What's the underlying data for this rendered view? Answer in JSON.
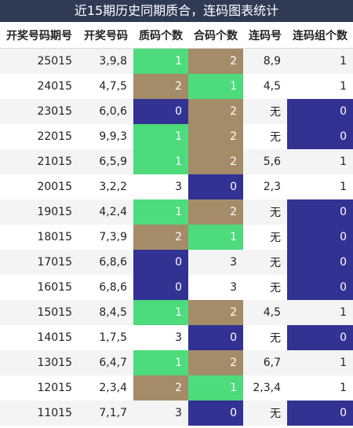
{
  "title": "近15期历史同期质合，连码图表统计",
  "headers": [
    "开奖号码期号",
    "开奖号码",
    "质码个数",
    "合码个数",
    "连码号",
    "连码组个数"
  ],
  "colors": {
    "green": "#4ddb7b",
    "tan": "#a48c68",
    "navy": "#323293"
  },
  "rows": [
    {
      "period": "25015",
      "numbers": "3,9,8",
      "prime": "1",
      "prime_color": "green",
      "composite": "2",
      "composite_color": "tan",
      "consec": "8,9",
      "consec_count": "1",
      "count_color": ""
    },
    {
      "period": "24015",
      "numbers": "4,7,5",
      "prime": "2",
      "prime_color": "tan",
      "composite": "1",
      "composite_color": "green",
      "consec": "4,5",
      "consec_count": "1",
      "count_color": ""
    },
    {
      "period": "23015",
      "numbers": "6,0,6",
      "prime": "0",
      "prime_color": "navy",
      "composite": "2",
      "composite_color": "tan",
      "consec": "无",
      "consec_count": "0",
      "count_color": "navy"
    },
    {
      "period": "22015",
      "numbers": "9,9,3",
      "prime": "1",
      "prime_color": "green",
      "composite": "2",
      "composite_color": "tan",
      "consec": "无",
      "consec_count": "0",
      "count_color": "navy"
    },
    {
      "period": "21015",
      "numbers": "6,5,9",
      "prime": "1",
      "prime_color": "green",
      "composite": "2",
      "composite_color": "tan",
      "consec": "5,6",
      "consec_count": "1",
      "count_color": ""
    },
    {
      "period": "20015",
      "numbers": "3,2,2",
      "prime": "3",
      "prime_color": "",
      "composite": "0",
      "composite_color": "navy",
      "consec": "2,3",
      "consec_count": "1",
      "count_color": ""
    },
    {
      "period": "19015",
      "numbers": "4,2,4",
      "prime": "1",
      "prime_color": "green",
      "composite": "2",
      "composite_color": "tan",
      "consec": "无",
      "consec_count": "0",
      "count_color": "navy"
    },
    {
      "period": "18015",
      "numbers": "7,3,9",
      "prime": "2",
      "prime_color": "tan",
      "composite": "1",
      "composite_color": "green",
      "consec": "无",
      "consec_count": "0",
      "count_color": "navy"
    },
    {
      "period": "17015",
      "numbers": "6,8,6",
      "prime": "0",
      "prime_color": "navy",
      "composite": "3",
      "composite_color": "",
      "consec": "无",
      "consec_count": "0",
      "count_color": "navy"
    },
    {
      "period": "16015",
      "numbers": "6,8,6",
      "prime": "0",
      "prime_color": "navy",
      "composite": "3",
      "composite_color": "",
      "consec": "无",
      "consec_count": "0",
      "count_color": "navy"
    },
    {
      "period": "15015",
      "numbers": "8,4,5",
      "prime": "1",
      "prime_color": "green",
      "composite": "2",
      "composite_color": "tan",
      "consec": "4,5",
      "consec_count": "1",
      "count_color": ""
    },
    {
      "period": "14015",
      "numbers": "1,7,5",
      "prime": "3",
      "prime_color": "",
      "composite": "0",
      "composite_color": "navy",
      "consec": "无",
      "consec_count": "0",
      "count_color": "navy"
    },
    {
      "period": "13015",
      "numbers": "6,4,7",
      "prime": "1",
      "prime_color": "green",
      "composite": "2",
      "composite_color": "tan",
      "consec": "6,7",
      "consec_count": "1",
      "count_color": ""
    },
    {
      "period": "12015",
      "numbers": "2,3,4",
      "prime": "2",
      "prime_color": "tan",
      "composite": "1",
      "composite_color": "green",
      "consec": "2,3,4",
      "consec_count": "1",
      "count_color": ""
    },
    {
      "period": "11015",
      "numbers": "7,1,7",
      "prime": "3",
      "prime_color": "",
      "composite": "0",
      "composite_color": "navy",
      "consec": "无",
      "consec_count": "0",
      "count_color": "navy"
    }
  ]
}
